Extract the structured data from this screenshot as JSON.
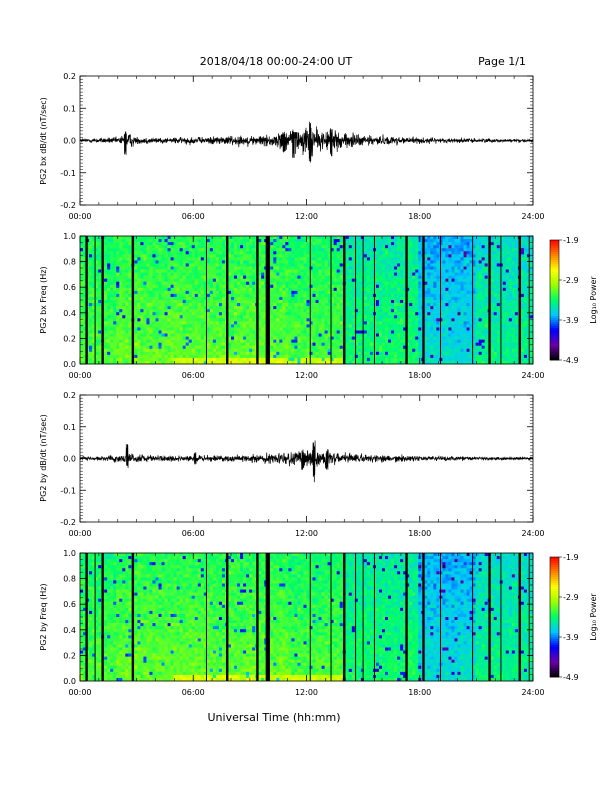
{
  "header": {
    "title": "2018/04/18  00:00-24:00 UT",
    "page": "Page 1/1"
  },
  "xaxis_label": "Universal Time (hh:mm)",
  "chart_data": [
    {
      "type": "line",
      "id": "bx-timeseries",
      "ylabel": "PG2 bx dB/dt (nT/sec)",
      "xlim": [
        0,
        24
      ],
      "ylim": [
        -0.2,
        0.2
      ],
      "xticks": [
        "00:00",
        "06:00",
        "12:00",
        "18:00",
        "24:00"
      ],
      "yticks": [
        "0.2",
        "0.1",
        "0.0",
        "-0.1",
        "-0.2"
      ],
      "envelope_hours": [
        0,
        1,
        2,
        2.5,
        3,
        4,
        5,
        6,
        7,
        8,
        9,
        10,
        11,
        11.5,
        12,
        12.5,
        13,
        13.5,
        14,
        15,
        16,
        17,
        18,
        19,
        20,
        21,
        22,
        23,
        24
      ],
      "envelope_amp": [
        0.006,
        0.008,
        0.01,
        0.025,
        0.012,
        0.01,
        0.01,
        0.012,
        0.012,
        0.015,
        0.015,
        0.02,
        0.03,
        0.04,
        0.05,
        0.035,
        0.03,
        0.03,
        0.025,
        0.02,
        0.015,
        0.012,
        0.01,
        0.008,
        0.007,
        0.006,
        0.006,
        0.005,
        0.005
      ],
      "peaks": [
        {
          "t": 2.4,
          "min": -0.05,
          "max": 0.03
        },
        {
          "t": 10.8,
          "min": -0.05,
          "max": 0.03
        },
        {
          "t": 11.3,
          "min": -0.06,
          "max": 0.04
        },
        {
          "t": 12.2,
          "min": -0.07,
          "max": 0.06
        },
        {
          "t": 13.3,
          "min": -0.05,
          "max": 0.04
        }
      ]
    },
    {
      "type": "heatmap",
      "id": "bx-spectrogram",
      "ylabel": "PG2 bx Freq (Hz)",
      "xlim": [
        0,
        24
      ],
      "ylim": [
        0,
        1.0
      ],
      "xticks": [
        "00:00",
        "06:00",
        "12:00",
        "18:00",
        "24:00"
      ],
      "yticks": [
        "1.0",
        "0.8",
        "0.6",
        "0.4",
        "0.2",
        "0.0"
      ],
      "colorbar": {
        "label": "Log₁₀ Power",
        "min": -4.9,
        "max": -1.9,
        "ticks": [
          "-1.9",
          "-2.9",
          "-3.9",
          "-4.9"
        ]
      },
      "gaps_thick": [
        0.35,
        1.2,
        2.8,
        7.8,
        9.4,
        9.9,
        10.0,
        14.0,
        17.3,
        18.2,
        21.7,
        23.3
      ],
      "gaps_thin": [
        0.8,
        6.7,
        12.2,
        13.3,
        14.6,
        15.0,
        15.6,
        19.1,
        20.8,
        22.3,
        23.8
      ]
    },
    {
      "type": "line",
      "id": "by-timeseries",
      "ylabel": "PG2 by dB/dt (nT/sec)",
      "xlim": [
        0,
        24
      ],
      "ylim": [
        -0.2,
        0.2
      ],
      "xticks": [
        "00:00",
        "06:00",
        "12:00",
        "18:00",
        "24:00"
      ],
      "yticks": [
        "0.2",
        "0.1",
        "0.0",
        "-0.1",
        "-0.2"
      ],
      "envelope_hours": [
        0,
        1,
        2,
        2.5,
        3,
        4,
        5,
        6,
        7,
        8,
        9,
        10,
        11,
        11.5,
        12,
        12.5,
        13,
        13.5,
        14,
        15,
        16,
        17,
        18,
        19,
        20,
        21,
        22,
        23,
        24
      ],
      "envelope_amp": [
        0.006,
        0.007,
        0.01,
        0.02,
        0.012,
        0.01,
        0.009,
        0.01,
        0.01,
        0.01,
        0.012,
        0.015,
        0.02,
        0.028,
        0.035,
        0.03,
        0.025,
        0.02,
        0.015,
        0.012,
        0.012,
        0.01,
        0.008,
        0.007,
        0.006,
        0.006,
        0.006,
        0.005,
        0.005
      ],
      "peaks": [
        {
          "t": 2.5,
          "min": -0.03,
          "max": 0.05
        },
        {
          "t": 6.1,
          "min": -0.02,
          "max": 0.02
        },
        {
          "t": 11.8,
          "min": -0.04,
          "max": 0.03
        },
        {
          "t": 12.4,
          "min": -0.08,
          "max": 0.06
        },
        {
          "t": 13.1,
          "min": -0.04,
          "max": 0.03
        }
      ]
    },
    {
      "type": "heatmap",
      "id": "by-spectrogram",
      "ylabel": "PG2 by Freq (Hz)",
      "xlim": [
        0,
        24
      ],
      "ylim": [
        0,
        1.0
      ],
      "xticks": [
        "00:00",
        "06:00",
        "12:00",
        "18:00",
        "24:00"
      ],
      "yticks": [
        "1.0",
        "0.8",
        "0.6",
        "0.4",
        "0.2",
        "0.0"
      ],
      "colorbar": {
        "label": "Log₁₀ Power",
        "min": -4.9,
        "max": -1.9,
        "ticks": [
          "-1.9",
          "-2.9",
          "-3.9",
          "-4.9"
        ]
      },
      "gaps_thick": [
        0.35,
        1.2,
        2.8,
        7.8,
        9.4,
        9.9,
        10.0,
        14.0,
        17.3,
        18.2,
        21.7,
        23.3
      ],
      "gaps_thin": [
        0.8,
        6.7,
        12.2,
        13.3,
        14.6,
        15.0,
        15.6,
        19.1,
        20.8,
        22.3,
        23.8
      ]
    }
  ],
  "colors": {
    "background": "#ffffff",
    "trace": "#000000",
    "spectrogram_colormap": [
      "#000000",
      "#6a00a8",
      "#0000ff",
      "#00c8ff",
      "#00ff64",
      "#9cff00",
      "#ffff00",
      "#ff8000",
      "#ff0000"
    ]
  }
}
